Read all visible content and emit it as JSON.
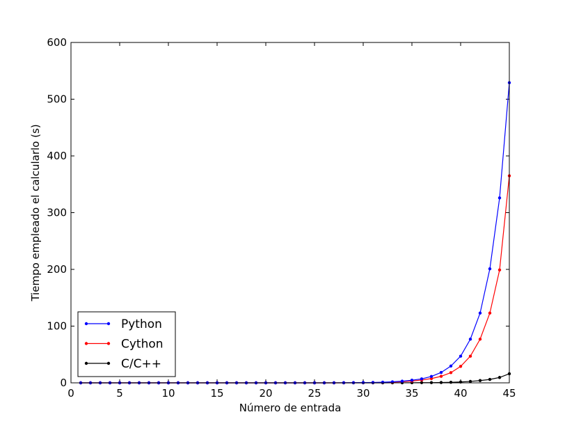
{
  "chart_data": {
    "type": "line",
    "title": "",
    "xlabel": "Número de entrada",
    "ylabel": "Tiempo empleado el calcularlo (s)",
    "xlim": [
      0,
      45
    ],
    "ylim": [
      0,
      600
    ],
    "xticks": [
      0,
      5,
      10,
      15,
      20,
      25,
      30,
      35,
      40,
      45
    ],
    "yticks": [
      0,
      100,
      200,
      300,
      400,
      500,
      600
    ],
    "grid": false,
    "legend_position": "lower-left",
    "x": [
      1,
      2,
      3,
      4,
      5,
      6,
      7,
      8,
      9,
      10,
      11,
      12,
      13,
      14,
      15,
      16,
      17,
      18,
      19,
      20,
      21,
      22,
      23,
      24,
      25,
      26,
      27,
      28,
      29,
      30,
      31,
      32,
      33,
      34,
      35,
      36,
      37,
      38,
      39,
      40,
      41,
      42,
      43,
      44,
      45
    ],
    "series": [
      {
        "name": "Python",
        "color": "#0000ff",
        "values": [
          0,
          0,
          0,
          0,
          0,
          0,
          0,
          0,
          0,
          0,
          0,
          0,
          0,
          0,
          0,
          0,
          0,
          0,
          0,
          0,
          0,
          0,
          0,
          0,
          0,
          0,
          0.1,
          0.2,
          0.3,
          0.5,
          0.7,
          1.1,
          1.8,
          2.9,
          4.7,
          7.0,
          11.3,
          18.3,
          29.6,
          47.0,
          77.0,
          123.0,
          201.0,
          326.0,
          529.0
        ]
      },
      {
        "name": "Cython",
        "color": "#ff0000",
        "values": [
          0,
          0,
          0,
          0,
          0,
          0,
          0,
          0,
          0,
          0,
          0,
          0,
          0,
          0,
          0,
          0,
          0,
          0,
          0,
          0,
          0,
          0,
          0,
          0,
          0,
          0,
          0,
          0.1,
          0.2,
          0.3,
          0.5,
          0.8,
          1.2,
          2.0,
          3.2,
          5.0,
          7.5,
          11.5,
          18.0,
          29.0,
          47.0,
          77.0,
          123.0,
          199.0,
          365.0
        ]
      },
      {
        "name": "C/C++",
        "color": "#000000",
        "values": [
          0,
          0,
          0,
          0,
          0,
          0,
          0,
          0,
          0,
          0,
          0,
          0,
          0,
          0,
          0,
          0,
          0,
          0,
          0,
          0,
          0,
          0,
          0,
          0,
          0,
          0,
          0,
          0,
          0,
          0,
          0,
          0,
          0.1,
          0.1,
          0.2,
          0.3,
          0.4,
          0.6,
          1.0,
          1.5,
          2.5,
          4.0,
          6.0,
          9.5,
          16.0
        ]
      }
    ]
  }
}
